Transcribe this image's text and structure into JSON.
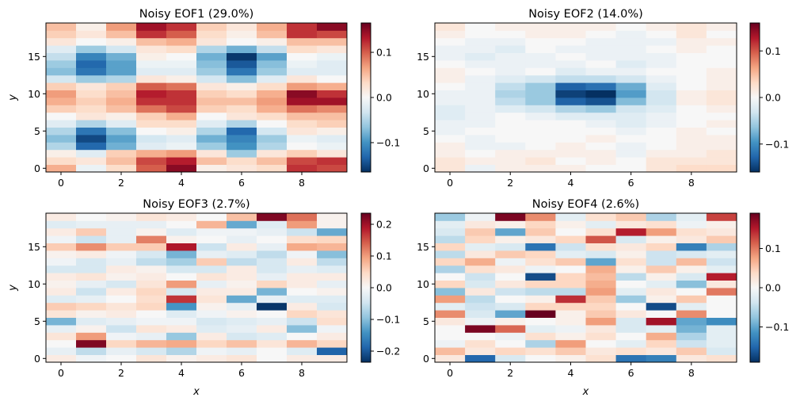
{
  "colormap": "RdBu_r",
  "colors": {
    "min": "#053061",
    "mid": "#f7f7f7",
    "max": "#67001f"
  },
  "chart_data": [
    {
      "type": "heatmap",
      "title": "Noisy EOF1 (29.0%)",
      "xlabel": "",
      "ylabel": "y",
      "x_ticks": [
        0,
        2,
        4,
        6,
        8
      ],
      "y_ticks": [
        0,
        5,
        10,
        15
      ],
      "xlim": [
        -0.5,
        9.5
      ],
      "ylim": [
        -0.5,
        19.5
      ],
      "colorbar_ticks": [
        -0.1,
        0.0,
        0.1
      ],
      "colorbar_tick_labels": [
        "−0.1",
        "0.0",
        "0.1"
      ],
      "vmin": -0.165,
      "vmax": 0.165,
      "z": [
        [
          0.06,
          -0.01,
          0.03,
          0.1,
          0.15,
          0.01,
          0.02,
          0.03,
          0.12,
          0.11
        ],
        [
          0.03,
          0.02,
          0.05,
          0.11,
          0.13,
          0.05,
          0.03,
          0.05,
          0.11,
          0.12
        ],
        [
          0.01,
          -0.02,
          0.04,
          0.06,
          0.07,
          0.02,
          -0.06,
          0.02,
          0.04,
          0.02
        ],
        [
          -0.05,
          -0.13,
          -0.08,
          -0.02,
          -0.01,
          -0.06,
          -0.1,
          -0.05,
          0.0,
          -0.01
        ],
        [
          -0.07,
          -0.15,
          -0.09,
          -0.03,
          -0.02,
          -0.08,
          -0.11,
          -0.06,
          -0.01,
          -0.02
        ],
        [
          -0.05,
          -0.12,
          -0.07,
          0.0,
          0.01,
          -0.05,
          -0.13,
          -0.03,
          0.02,
          0.01
        ],
        [
          -0.02,
          -0.05,
          -0.02,
          0.03,
          0.03,
          -0.02,
          -0.05,
          0.0,
          0.03,
          0.04
        ],
        [
          0.0,
          0.02,
          0.01,
          0.04,
          0.06,
          0.0,
          0.02,
          0.03,
          0.05,
          0.05
        ],
        [
          0.04,
          0.03,
          0.05,
          0.09,
          0.11,
          0.04,
          0.03,
          0.06,
          0.09,
          0.08
        ],
        [
          0.06,
          0.04,
          0.06,
          0.12,
          0.12,
          0.05,
          0.05,
          0.07,
          0.14,
          0.14
        ],
        [
          0.07,
          0.03,
          0.05,
          0.13,
          0.12,
          0.04,
          0.03,
          0.06,
          0.15,
          0.12
        ],
        [
          0.04,
          0.02,
          0.04,
          0.1,
          0.09,
          0.02,
          0.01,
          0.03,
          0.07,
          0.06
        ],
        [
          -0.03,
          -0.06,
          -0.05,
          0.02,
          0.01,
          -0.03,
          -0.07,
          -0.02,
          0.02,
          0.0
        ],
        [
          -0.07,
          -0.12,
          -0.09,
          -0.02,
          -0.02,
          -0.06,
          -0.12,
          -0.06,
          -0.02,
          -0.02
        ],
        [
          -0.06,
          -0.13,
          -0.09,
          -0.01,
          -0.01,
          -0.07,
          -0.14,
          -0.07,
          -0.01,
          -0.02
        ],
        [
          -0.04,
          -0.11,
          -0.08,
          0.01,
          0.0,
          -0.08,
          -0.16,
          -0.09,
          0.0,
          -0.01
        ],
        [
          -0.02,
          -0.06,
          -0.03,
          0.02,
          0.03,
          -0.05,
          -0.08,
          -0.04,
          0.03,
          0.02
        ],
        [
          0.02,
          0.0,
          0.01,
          0.05,
          0.06,
          0.02,
          0.0,
          0.01,
          0.05,
          0.05
        ],
        [
          0.04,
          0.02,
          0.05,
          0.12,
          0.1,
          0.03,
          0.01,
          0.05,
          0.12,
          0.11
        ],
        [
          0.05,
          0.01,
          0.07,
          0.14,
          0.12,
          0.04,
          0.02,
          0.06,
          0.12,
          0.15
        ]
      ]
    },
    {
      "type": "heatmap",
      "title": "Noisy EOF2 (14.0%)",
      "xlabel": "",
      "ylabel": "",
      "x_ticks": [
        0,
        2,
        4,
        6,
        8
      ],
      "y_ticks": [
        0,
        5,
        10,
        15
      ],
      "xlim": [
        -0.5,
        9.5
      ],
      "ylim": [
        -0.5,
        19.5
      ],
      "colorbar_ticks": [
        -0.1,
        0.0,
        0.1
      ],
      "colorbar_tick_labels": [
        "−0.1",
        "0.0",
        "0.1"
      ],
      "vmin": -0.16,
      "vmax": 0.16,
      "z": [
        [
          0.02,
          -0.01,
          0.01,
          0.01,
          0.01,
          0.0,
          0.0,
          0.02,
          0.03,
          0.03
        ],
        [
          0.02,
          0.01,
          0.01,
          0.02,
          0.0,
          0.01,
          0.0,
          0.02,
          0.02,
          0.02
        ],
        [
          0.01,
          0.0,
          0.01,
          0.01,
          0.01,
          0.01,
          -0.01,
          0.01,
          0.01,
          0.02
        ],
        [
          0.01,
          -0.01,
          -0.01,
          0.0,
          0.01,
          0.0,
          -0.01,
          0.0,
          0.01,
          0.01
        ],
        [
          0.0,
          -0.01,
          0.0,
          0.0,
          0.0,
          0.01,
          0.0,
          0.0,
          0.01,
          0.01
        ],
        [
          -0.01,
          0.0,
          0.0,
          0.0,
          0.0,
          0.0,
          -0.01,
          0.0,
          0.01,
          0.0
        ],
        [
          -0.01,
          -0.01,
          0.0,
          0.0,
          0.0,
          -0.01,
          -0.02,
          -0.01,
          0.0,
          0.01
        ],
        [
          -0.02,
          -0.01,
          0.0,
          -0.01,
          -0.02,
          -0.02,
          -0.02,
          -0.01,
          0.0,
          0.0
        ],
        [
          -0.02,
          -0.01,
          -0.02,
          -0.03,
          -0.05,
          -0.06,
          -0.03,
          -0.02,
          0.0,
          0.01
        ],
        [
          -0.01,
          -0.01,
          -0.04,
          -0.06,
          -0.13,
          -0.14,
          -0.07,
          -0.03,
          0.01,
          0.02
        ],
        [
          -0.01,
          -0.01,
          -0.05,
          -0.06,
          -0.15,
          -0.16,
          -0.09,
          -0.03,
          0.01,
          0.02
        ],
        [
          0.0,
          -0.01,
          -0.04,
          -0.06,
          -0.13,
          -0.12,
          -0.08,
          -0.02,
          0.0,
          0.01
        ],
        [
          0.01,
          -0.01,
          -0.02,
          -0.03,
          -0.04,
          -0.04,
          -0.03,
          -0.01,
          0.0,
          0.01
        ],
        [
          0.01,
          0.0,
          -0.01,
          0.0,
          -0.02,
          -0.01,
          -0.01,
          0.0,
          0.0,
          0.01
        ],
        [
          0.0,
          -0.01,
          -0.01,
          -0.01,
          -0.01,
          0.0,
          -0.02,
          -0.01,
          0.0,
          0.0
        ],
        [
          -0.01,
          -0.02,
          -0.01,
          -0.01,
          0.0,
          -0.01,
          -0.01,
          -0.01,
          0.0,
          0.0
        ],
        [
          -0.01,
          -0.01,
          -0.02,
          0.0,
          -0.01,
          -0.01,
          -0.01,
          0.0,
          0.01,
          0.0
        ],
        [
          0.0,
          -0.01,
          -0.01,
          0.0,
          0.0,
          -0.01,
          -0.01,
          -0.01,
          0.01,
          0.01
        ],
        [
          0.01,
          0.0,
          0.0,
          0.01,
          0.01,
          0.0,
          -0.01,
          0.0,
          0.02,
          0.0
        ],
        [
          0.02,
          0.0,
          0.01,
          0.01,
          0.01,
          0.01,
          0.0,
          0.01,
          0.02,
          0.01
        ]
      ]
    },
    {
      "type": "heatmap",
      "title": "Noisy EOF3 (2.7%)",
      "xlabel": "x",
      "ylabel": "y",
      "x_ticks": [
        0,
        2,
        4,
        6,
        8
      ],
      "y_ticks": [
        0,
        5,
        10,
        15
      ],
      "xlim": [
        -0.5,
        9.5
      ],
      "ylim": [
        -0.5,
        19.5
      ],
      "colorbar_ticks": [
        -0.2,
        -0.1,
        0.0,
        0.1,
        0.2
      ],
      "colorbar_tick_labels": [
        "−0.2",
        "−0.1",
        "0.0",
        "0.1",
        "0.2"
      ],
      "vmin": -0.235,
      "vmax": 0.235,
      "z": [
        [
          0.02,
          -0.01,
          0.0,
          0.03,
          0.01,
          0.02,
          0.03,
          0.0,
          0.02,
          0.02
        ],
        [
          -0.02,
          -0.06,
          -0.02,
          -0.04,
          -0.07,
          -0.01,
          -0.02,
          0.0,
          -0.03,
          -0.19
        ],
        [
          0.0,
          0.22,
          0.05,
          0.08,
          0.09,
          0.05,
          0.07,
          0.03,
          0.08,
          0.05
        ],
        [
          0.03,
          0.1,
          -0.01,
          -0.02,
          -0.09,
          0.02,
          -0.04,
          -0.03,
          0.0,
          0.02
        ],
        [
          -0.02,
          0.01,
          -0.05,
          0.03,
          0.02,
          -0.03,
          -0.02,
          0.02,
          -0.1,
          -0.01
        ],
        [
          -0.11,
          -0.03,
          -0.02,
          -0.01,
          -0.01,
          -0.04,
          -0.03,
          -0.02,
          -0.05,
          0.04
        ],
        [
          0.03,
          0.01,
          0.02,
          0.0,
          -0.03,
          -0.01,
          0.01,
          0.0,
          0.05,
          0.03
        ],
        [
          0.06,
          0.05,
          0.03,
          0.05,
          -0.14,
          0.01,
          -0.02,
          -0.23,
          0.02,
          -0.04
        ],
        [
          -0.03,
          -0.02,
          0.0,
          0.04,
          0.17,
          0.03,
          -0.12,
          -0.02,
          -0.03,
          -0.03
        ],
        [
          0.02,
          -0.05,
          0.02,
          0.05,
          -0.04,
          0.02,
          0.02,
          -0.11,
          0.0,
          0.01
        ],
        [
          0.01,
          -0.02,
          -0.04,
          0.03,
          0.1,
          -0.02,
          0.01,
          0.05,
          0.02,
          -0.02
        ],
        [
          0.02,
          0.03,
          0.01,
          0.02,
          0.0,
          0.03,
          0.02,
          -0.02,
          0.02,
          0.02
        ],
        [
          -0.04,
          -0.04,
          0.02,
          0.01,
          -0.04,
          -0.04,
          0.02,
          -0.04,
          -0.02,
          -0.03
        ],
        [
          -0.01,
          -0.04,
          -0.02,
          -0.06,
          -0.08,
          0.06,
          -0.06,
          -0.04,
          0.02,
          -0.06
        ],
        [
          0.01,
          0.02,
          -0.01,
          -0.04,
          -0.11,
          -0.02,
          -0.03,
          -0.06,
          -0.01,
          -0.1
        ],
        [
          0.06,
          0.11,
          0.06,
          0.06,
          0.19,
          -0.05,
          0.02,
          -0.02,
          0.09,
          0.08
        ],
        [
          -0.01,
          -0.05,
          -0.02,
          0.12,
          0.01,
          0.0,
          -0.02,
          0.0,
          0.04,
          0.05
        ],
        [
          0.02,
          0.06,
          -0.02,
          0.01,
          -0.03,
          -0.01,
          -0.01,
          -0.02,
          -0.05,
          -0.12
        ],
        [
          -0.03,
          -0.02,
          -0.02,
          -0.02,
          0.0,
          0.08,
          -0.12,
          -0.03,
          0.1,
          0.01
        ],
        [
          0.02,
          0.0,
          0.01,
          0.03,
          0.02,
          0.0,
          0.07,
          0.22,
          0.13,
          0.01
        ]
      ]
    },
    {
      "type": "heatmap",
      "title": "Noisy EOF4 (2.6%)",
      "xlabel": "x",
      "ylabel": "",
      "x_ticks": [
        0,
        2,
        4,
        6,
        8
      ],
      "y_ticks": [
        0,
        5,
        10,
        15
      ],
      "xlim": [
        -0.5,
        9.5
      ],
      "ylim": [
        -0.5,
        19.5
      ],
      "colorbar_ticks": [
        -0.1,
        0.0,
        0.1
      ],
      "colorbar_tick_labels": [
        "−0.1",
        "0.0",
        "0.1"
      ],
      "vmin": -0.19,
      "vmax": 0.19,
      "z": [
        [
          0.02,
          -0.15,
          -0.03,
          0.0,
          0.01,
          0.03,
          -0.14,
          -0.13,
          0.02,
          0.03
        ],
        [
          0.06,
          0.02,
          0.04,
          0.03,
          0.05,
          0.02,
          0.03,
          0.02,
          0.05,
          -0.03
        ],
        [
          -0.01,
          0.03,
          0.0,
          -0.06,
          0.08,
          0.0,
          -0.02,
          0.04,
          -0.04,
          -0.02
        ],
        [
          0.0,
          0.0,
          -0.01,
          0.03,
          0.01,
          0.03,
          0.0,
          0.07,
          -0.06,
          -0.02
        ],
        [
          0.0,
          0.18,
          0.11,
          -0.02,
          -0.01,
          0.02,
          -0.03,
          -0.02,
          -0.09,
          -0.02
        ],
        [
          0.02,
          -0.01,
          0.01,
          0.0,
          0.01,
          0.08,
          -0.03,
          0.16,
          -0.1,
          -0.12
        ],
        [
          0.09,
          -0.03,
          -0.1,
          0.19,
          0.01,
          0.05,
          0.02,
          0.0,
          0.09,
          0.0
        ],
        [
          -0.02,
          -0.04,
          -0.03,
          0.04,
          0.04,
          0.04,
          0.0,
          -0.17,
          -0.02,
          0.0
        ],
        [
          0.08,
          -0.05,
          0.0,
          0.01,
          0.14,
          0.05,
          -0.07,
          0.01,
          0.05,
          0.0
        ],
        [
          -0.08,
          0.02,
          -0.04,
          -0.05,
          -0.05,
          0.08,
          -0.02,
          0.02,
          0.0,
          0.1
        ],
        [
          0.04,
          -0.03,
          0.02,
          0.04,
          0.04,
          0.07,
          0.0,
          -0.02,
          -0.08,
          0.02
        ],
        [
          0.0,
          -0.04,
          0.0,
          -0.17,
          0.04,
          0.06,
          -0.05,
          0.01,
          -0.03,
          0.15
        ],
        [
          -0.06,
          0.03,
          0.02,
          -0.01,
          0.0,
          0.07,
          0.01,
          0.05,
          0.01,
          -0.02
        ],
        [
          0.04,
          0.07,
          -0.01,
          0.03,
          0.05,
          -0.1,
          0.03,
          -0.04,
          0.06,
          -0.04
        ],
        [
          -0.05,
          0.02,
          0.05,
          0.04,
          -0.02,
          -0.03,
          0.01,
          -0.04,
          -0.03,
          -0.02
        ],
        [
          0.04,
          -0.02,
          -0.03,
          -0.14,
          -0.04,
          0.03,
          0.02,
          0.04,
          -0.13,
          -0.06
        ],
        [
          -0.05,
          0.04,
          0.01,
          0.02,
          0.04,
          0.12,
          -0.03,
          0.01,
          0.02,
          0.05
        ],
        [
          -0.03,
          0.05,
          -0.1,
          0.05,
          0.0,
          0.03,
          0.15,
          0.08,
          0.03,
          0.02
        ],
        [
          -0.02,
          0.02,
          0.01,
          0.04,
          0.01,
          -0.02,
          0.02,
          0.03,
          -0.01,
          0.01
        ],
        [
          -0.07,
          -0.01,
          0.18,
          0.09,
          -0.02,
          0.03,
          0.05,
          -0.06,
          -0.02,
          0.13
        ]
      ]
    }
  ]
}
